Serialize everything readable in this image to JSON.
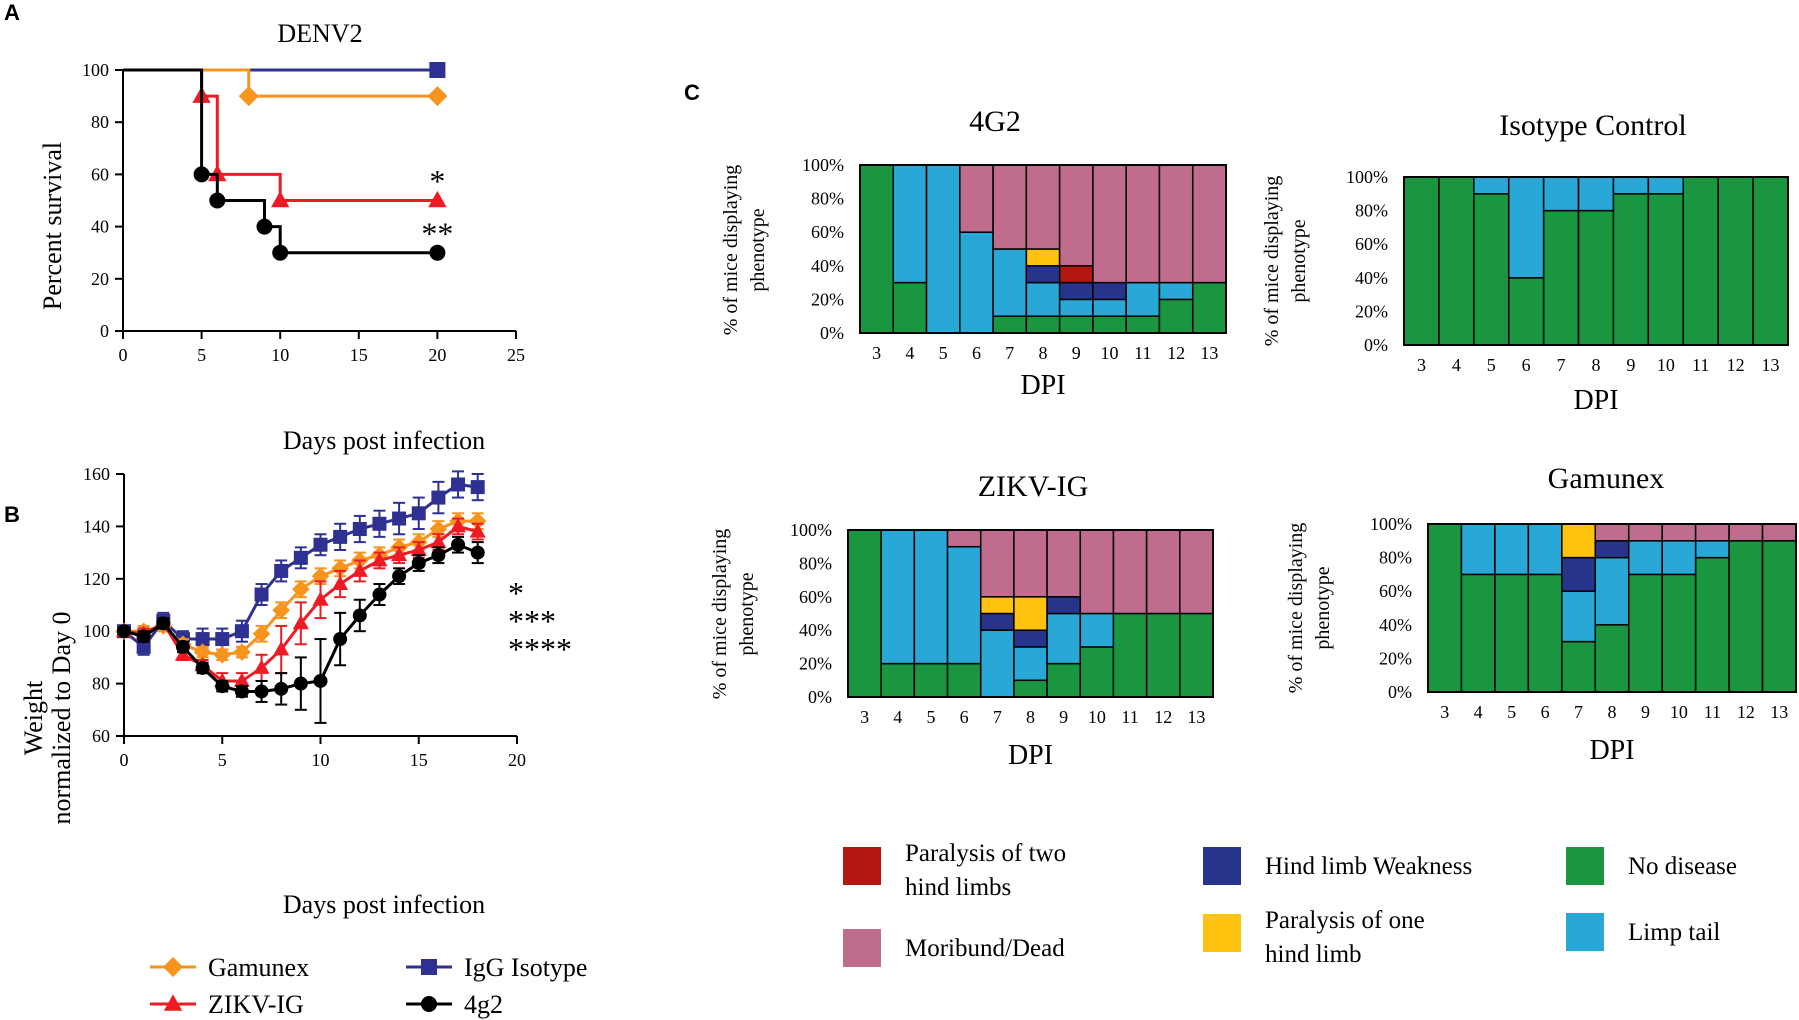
{
  "panel_labels": {
    "a": "A",
    "b": "B",
    "c": "C"
  },
  "colors": {
    "gamunex": "#F7941D",
    "zikv": "#ED1C24",
    "igg": "#2E3192",
    "g4": "#000000",
    "no_disease": "#1A9641",
    "limp_tail": "#29A8D8",
    "weakness": "#27348B",
    "paralysis_one": "#FFC20E",
    "paralysis_two": "#B2180F",
    "moribund": "#C06C8E"
  },
  "chart_data": [
    {
      "id": "A",
      "type": "line",
      "step": true,
      "title": "DENV2",
      "xlabel": "Days post infection",
      "ylabel": "Percent survival",
      "xlim": [
        0,
        25
      ],
      "ylim": [
        0,
        100
      ],
      "xticks": [
        "0",
        "5",
        "10",
        "15",
        "20",
        "25"
      ],
      "yticks": [
        "0",
        "20",
        "40",
        "60",
        "80",
        "100"
      ],
      "series": [
        {
          "name": "IgG Isotype",
          "color": "#2E3192",
          "marker": "square",
          "x": [
            0,
            20
          ],
          "y": [
            100,
            100
          ],
          "markers": [
            [
              20,
              100
            ]
          ]
        },
        {
          "name": "Gamunex",
          "color": "#F7941D",
          "marker": "diamond",
          "x": [
            0,
            8,
            20
          ],
          "y": [
            100,
            90,
            90
          ],
          "markers": [
            [
              8,
              90
            ],
            [
              20,
              90
            ]
          ]
        },
        {
          "name": "ZIKV-IG",
          "color": "#ED1C24",
          "marker": "triangle",
          "x": [
            0,
            5,
            6,
            10,
            20
          ],
          "y": [
            100,
            90,
            60,
            50,
            50
          ],
          "markers": [
            [
              5,
              90
            ],
            [
              6,
              60
            ],
            [
              10,
              50
            ],
            [
              20,
              50
            ]
          ]
        },
        {
          "name": "4g2",
          "color": "#000000",
          "marker": "circle",
          "x": [
            0,
            5,
            6,
            9,
            10,
            20
          ],
          "y": [
            100,
            60,
            50,
            40,
            30,
            30
          ],
          "markers": [
            [
              5,
              60
            ],
            [
              6,
              50
            ],
            [
              9,
              40
            ],
            [
              10,
              30
            ],
            [
              20,
              30
            ]
          ]
        }
      ],
      "annotations": [
        {
          "text": "*",
          "x": 20,
          "y": 57,
          "color": "#000000"
        },
        {
          "text": "**",
          "x": 20,
          "y": 37,
          "color": "#000000"
        }
      ]
    },
    {
      "id": "B",
      "type": "line",
      "xlabel": "Days post infection",
      "ylabel_line1": "Weight",
      "ylabel_line2": "normalized to Day 0",
      "xlim": [
        0,
        20
      ],
      "ylim": [
        60,
        160
      ],
      "xticks": [
        "0",
        "5",
        "10",
        "15",
        "20"
      ],
      "yticks": [
        "60",
        "80",
        "100",
        "120",
        "140",
        "160"
      ],
      "series": [
        {
          "name": "IgG Isotype",
          "color": "#2E3192",
          "marker": "square",
          "x": [
            0,
            1,
            2,
            3,
            4,
            5,
            6,
            7,
            8,
            9,
            10,
            11,
            12,
            13,
            14,
            15,
            16,
            17,
            18
          ],
          "y": [
            100,
            94,
            104,
            97,
            97,
            97,
            100,
            114,
            123,
            128,
            133,
            136,
            139,
            141,
            143,
            145,
            151,
            156,
            155
          ],
          "err": [
            2,
            3,
            3,
            3,
            4,
            4,
            4,
            4,
            4,
            4,
            4,
            5,
            5,
            5,
            6,
            6,
            6,
            5,
            5
          ]
        },
        {
          "name": "Gamunex",
          "color": "#F7941D",
          "marker": "diamond",
          "x": [
            0,
            1,
            2,
            3,
            4,
            5,
            6,
            7,
            8,
            9,
            10,
            11,
            12,
            13,
            14,
            15,
            16,
            17,
            18
          ],
          "y": [
            100,
            100,
            102,
            95,
            92,
            91,
            92,
            99,
            108,
            116,
            121,
            124,
            127,
            129,
            132,
            134,
            139,
            142,
            142
          ],
          "err": [
            1,
            2,
            2,
            2,
            2,
            2,
            2,
            3,
            3,
            3,
            3,
            3,
            3,
            3,
            3,
            3,
            3,
            3,
            3
          ]
        },
        {
          "name": "ZIKV-IG",
          "color": "#ED1C24",
          "marker": "triangle",
          "x": [
            0,
            1,
            2,
            3,
            4,
            5,
            6,
            7,
            8,
            9,
            10,
            11,
            12,
            13,
            14,
            15,
            16,
            17,
            18
          ],
          "y": [
            100,
            99,
            103,
            91,
            87,
            81,
            81,
            86,
            93,
            103,
            112,
            118,
            123,
            127,
            129,
            131,
            134,
            140,
            138
          ],
          "err": [
            1,
            2,
            2,
            2,
            2,
            3,
            3,
            5,
            9,
            8,
            7,
            5,
            4,
            3,
            3,
            3,
            3,
            3,
            3
          ]
        },
        {
          "name": "4g2",
          "color": "#000000",
          "marker": "circle",
          "x": [
            0,
            1,
            2,
            3,
            4,
            5,
            6,
            7,
            8,
            9,
            10,
            11,
            12,
            13,
            14,
            15,
            16,
            17,
            18
          ],
          "y": [
            100,
            98,
            103,
            94,
            86,
            79,
            77,
            77,
            78,
            80,
            81,
            97,
            106,
            114,
            121,
            126,
            129,
            133,
            130
          ],
          "err": [
            1,
            2,
            2,
            2,
            2,
            2,
            2,
            4,
            6,
            10,
            16,
            10,
            6,
            4,
            3,
            3,
            3,
            3,
            4
          ]
        }
      ],
      "annotations": [
        {
          "text": "*",
          "color": "#F7941D"
        },
        {
          "text": "***",
          "color": "#ED1C24"
        },
        {
          "text": "****",
          "color": "#000000"
        }
      ],
      "legend": [
        "Gamunex",
        "IgG Isotype",
        "ZIKV-IG",
        "4g2"
      ]
    },
    {
      "id": "C1",
      "type": "bar",
      "stacked": true,
      "title": "4G2",
      "xlabel": "DPI",
      "ylabel_line1": "% of mice displaying",
      "ylabel_line2": "phenotype",
      "categories": [
        "3",
        "4",
        "5",
        "6",
        "7",
        "8",
        "9",
        "10",
        "11",
        "12",
        "13"
      ],
      "yticks": [
        "0%",
        "20%",
        "40%",
        "60%",
        "80%",
        "100%"
      ],
      "stacks": [
        [
          [
            "no_disease",
            100
          ]
        ],
        [
          [
            "no_disease",
            30
          ],
          [
            "limp_tail",
            70
          ]
        ],
        [
          [
            "limp_tail",
            100
          ]
        ],
        [
          [
            "limp_tail",
            60
          ],
          [
            "moribund",
            40
          ]
        ],
        [
          [
            "no_disease",
            10
          ],
          [
            "limp_tail",
            40
          ],
          [
            "moribund",
            50
          ]
        ],
        [
          [
            "no_disease",
            10
          ],
          [
            "limp_tail",
            20
          ],
          [
            "weakness",
            10
          ],
          [
            "paralysis_one",
            10
          ],
          [
            "moribund",
            50
          ]
        ],
        [
          [
            "no_disease",
            10
          ],
          [
            "limp_tail",
            10
          ],
          [
            "weakness",
            10
          ],
          [
            "paralysis_two",
            10
          ],
          [
            "moribund",
            60
          ]
        ],
        [
          [
            "no_disease",
            10
          ],
          [
            "limp_tail",
            10
          ],
          [
            "weakness",
            10
          ],
          [
            "moribund",
            70
          ]
        ],
        [
          [
            "no_disease",
            10
          ],
          [
            "limp_tail",
            20
          ],
          [
            "moribund",
            70
          ]
        ],
        [
          [
            "no_disease",
            20
          ],
          [
            "limp_tail",
            10
          ],
          [
            "moribund",
            70
          ]
        ],
        [
          [
            "no_disease",
            30
          ],
          [
            "moribund",
            70
          ]
        ]
      ]
    },
    {
      "id": "C2",
      "type": "bar",
      "stacked": true,
      "title": "Isotype Control",
      "xlabel": "DPI",
      "ylabel_line1": "% of mice displaying",
      "ylabel_line2": "phenotype",
      "categories": [
        "3",
        "4",
        "5",
        "6",
        "7",
        "8",
        "9",
        "10",
        "11",
        "12",
        "13"
      ],
      "yticks": [
        "0%",
        "20%",
        "40%",
        "60%",
        "80%",
        "100%"
      ],
      "stacks": [
        [
          [
            "no_disease",
            100
          ]
        ],
        [
          [
            "no_disease",
            100
          ]
        ],
        [
          [
            "no_disease",
            90
          ],
          [
            "limp_tail",
            10
          ]
        ],
        [
          [
            "no_disease",
            40
          ],
          [
            "limp_tail",
            60
          ]
        ],
        [
          [
            "no_disease",
            80
          ],
          [
            "limp_tail",
            20
          ]
        ],
        [
          [
            "no_disease",
            80
          ],
          [
            "limp_tail",
            20
          ]
        ],
        [
          [
            "no_disease",
            90
          ],
          [
            "limp_tail",
            10
          ]
        ],
        [
          [
            "no_disease",
            90
          ],
          [
            "limp_tail",
            10
          ]
        ],
        [
          [
            "no_disease",
            100
          ]
        ],
        [
          [
            "no_disease",
            100
          ]
        ],
        [
          [
            "no_disease",
            100
          ]
        ]
      ]
    },
    {
      "id": "C3",
      "type": "bar",
      "stacked": true,
      "title": "ZIKV-IG",
      "xlabel": "DPI",
      "ylabel_line1": "% of mice displaying",
      "ylabel_line2": "phenotype",
      "categories": [
        "3",
        "4",
        "5",
        "6",
        "7",
        "8",
        "9",
        "10",
        "11",
        "12",
        "13"
      ],
      "yticks": [
        "0%",
        "20%",
        "40%",
        "60%",
        "80%",
        "100%"
      ],
      "stacks": [
        [
          [
            "no_disease",
            100
          ]
        ],
        [
          [
            "no_disease",
            20
          ],
          [
            "limp_tail",
            80
          ]
        ],
        [
          [
            "no_disease",
            20
          ],
          [
            "limp_tail",
            80
          ]
        ],
        [
          [
            "no_disease",
            20
          ],
          [
            "limp_tail",
            70
          ],
          [
            "moribund",
            10
          ]
        ],
        [
          [
            "limp_tail",
            40
          ],
          [
            "weakness",
            10
          ],
          [
            "paralysis_one",
            10
          ],
          [
            "moribund",
            40
          ]
        ],
        [
          [
            "no_disease",
            10
          ],
          [
            "limp_tail",
            20
          ],
          [
            "weakness",
            10
          ],
          [
            "paralysis_one",
            20
          ],
          [
            "moribund",
            40
          ]
        ],
        [
          [
            "no_disease",
            20
          ],
          [
            "limp_tail",
            30
          ],
          [
            "weakness",
            10
          ],
          [
            "moribund",
            40
          ]
        ],
        [
          [
            "no_disease",
            30
          ],
          [
            "limp_tail",
            20
          ],
          [
            "moribund",
            50
          ]
        ],
        [
          [
            "no_disease",
            50
          ],
          [
            "moribund",
            50
          ]
        ],
        [
          [
            "no_disease",
            50
          ],
          [
            "moribund",
            50
          ]
        ],
        [
          [
            "no_disease",
            50
          ],
          [
            "moribund",
            50
          ]
        ]
      ]
    },
    {
      "id": "C4",
      "type": "bar",
      "stacked": true,
      "title": "Gamunex",
      "xlabel": "DPI",
      "ylabel_line1": "% of mice displaying",
      "ylabel_line2": "phenotype",
      "categories": [
        "3",
        "4",
        "5",
        "6",
        "7",
        "8",
        "9",
        "10",
        "11",
        "12",
        "13"
      ],
      "yticks": [
        "0%",
        "20%",
        "40%",
        "60%",
        "80%",
        "100%"
      ],
      "stacks": [
        [
          [
            "no_disease",
            100
          ]
        ],
        [
          [
            "no_disease",
            70
          ],
          [
            "limp_tail",
            30
          ]
        ],
        [
          [
            "no_disease",
            70
          ],
          [
            "limp_tail",
            30
          ]
        ],
        [
          [
            "no_disease",
            70
          ],
          [
            "limp_tail",
            30
          ]
        ],
        [
          [
            "no_disease",
            30
          ],
          [
            "limp_tail",
            30
          ],
          [
            "weakness",
            20
          ],
          [
            "paralysis_one",
            20
          ]
        ],
        [
          [
            "no_disease",
            40
          ],
          [
            "limp_tail",
            40
          ],
          [
            "weakness",
            10
          ],
          [
            "moribund",
            10
          ]
        ],
        [
          [
            "no_disease",
            70
          ],
          [
            "limp_tail",
            20
          ],
          [
            "moribund",
            10
          ]
        ],
        [
          [
            "no_disease",
            70
          ],
          [
            "limp_tail",
            20
          ],
          [
            "moribund",
            10
          ]
        ],
        [
          [
            "no_disease",
            80
          ],
          [
            "limp_tail",
            10
          ],
          [
            "moribund",
            10
          ]
        ],
        [
          [
            "no_disease",
            90
          ],
          [
            "moribund",
            10
          ]
        ],
        [
          [
            "no_disease",
            90
          ],
          [
            "moribund",
            10
          ]
        ]
      ]
    }
  ],
  "phenotype_legend": [
    {
      "key": "paralysis_two",
      "line1": "Paralysis of two",
      "line2": "hind limbs"
    },
    {
      "key": "moribund",
      "line1": "Moribund/Dead",
      "line2": ""
    },
    {
      "key": "weakness",
      "line1": "Hind limb Weakness",
      "line2": ""
    },
    {
      "key": "paralysis_one",
      "line1": "Paralysis of one",
      "line2": "hind limb"
    },
    {
      "key": "no_disease",
      "line1": "No disease",
      "line2": ""
    },
    {
      "key": "limp_tail",
      "line1": "Limp tail",
      "line2": ""
    }
  ]
}
